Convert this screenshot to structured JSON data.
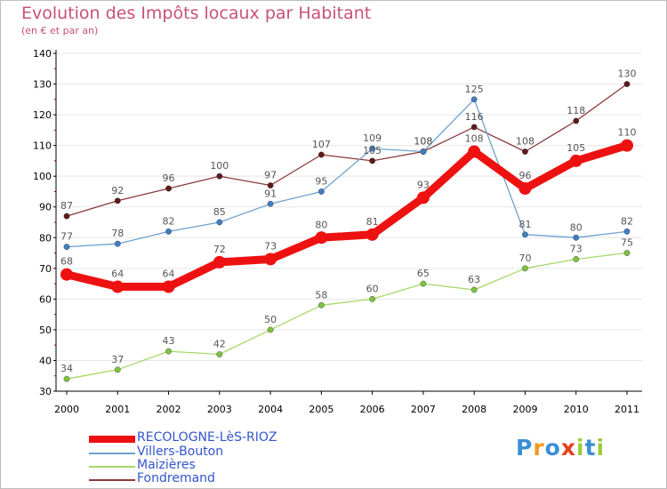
{
  "chart_data": {
    "type": "line",
    "title": "Evolution des Impôts locaux par Habitant",
    "subtitle": "(en € et par an)",
    "xlabel": "",
    "ylabel": "",
    "ylim": [
      30,
      140
    ],
    "yticks": [
      30,
      40,
      50,
      60,
      70,
      80,
      90,
      100,
      110,
      120,
      130,
      140
    ],
    "grid": "horizontal",
    "x": [
      "2000",
      "2001",
      "2002",
      "2003",
      "2004",
      "2005",
      "2006",
      "2007",
      "2008",
      "2009",
      "2010",
      "2011"
    ],
    "series": [
      {
        "name": "Fondremand",
        "color": "#8b3a3a",
        "point_color": "#5e1a1a",
        "values": [
          87,
          92,
          96,
          100,
          97,
          107,
          105,
          108,
          116,
          108,
          118,
          130
        ],
        "labels": [
          "87",
          "92",
          "96",
          "100",
          "97",
          "107",
          "105",
          "108",
          "116",
          "108",
          "118",
          "130"
        ]
      },
      {
        "name": "Villers-Bouton",
        "color": "#6fa1cf",
        "point_color": "#3f7fbf",
        "values": [
          77,
          78,
          82,
          85,
          91,
          95,
          109,
          108,
          125,
          81,
          80,
          82
        ],
        "labels": [
          "77",
          "78",
          "82",
          "85",
          "91",
          "95",
          "109",
          "108",
          "125",
          "81",
          "80",
          "82"
        ]
      },
      {
        "name": "Maizières",
        "color": "#a6d96a",
        "point_color": "#7fc241",
        "values": [
          34,
          37,
          43,
          42,
          50,
          58,
          60,
          65,
          63,
          70,
          73,
          75
        ],
        "labels": [
          "34",
          "37",
          "43",
          "42",
          "50",
          "58",
          "60",
          "65",
          "63",
          "70",
          "73",
          "75"
        ]
      },
      {
        "name": "RECOLOGNE-LèS-RIOZ",
        "color": "#ee1111",
        "point_color": "#ee1111",
        "values": [
          68,
          64,
          64,
          72,
          73,
          80,
          81,
          93,
          108,
          96,
          105,
          110
        ],
        "labels": [
          "68",
          "64",
          "64",
          "72",
          "73",
          "80",
          "81",
          "93",
          "108",
          "96",
          "105",
          "110"
        ]
      }
    ],
    "legend": [
      {
        "name": "RECOLOGNE-LèS-RIOZ",
        "color": "#ee1111"
      },
      {
        "name": "Villers-Bouton",
        "color": "#6fa1cf"
      },
      {
        "name": "Maizières",
        "color": "#a6d96a"
      },
      {
        "name": "Fondremand",
        "color": "#8b3a3a"
      }
    ],
    "legend_position": "bottom-left"
  },
  "colors": {
    "title": "#c8507a",
    "legend_text": "#3355cc",
    "axis": "#000000",
    "grid": "#e6e6e6",
    "value_label": "#555555"
  },
  "logo": {
    "letters": [
      "P",
      "r",
      "o",
      "x",
      "i",
      "t",
      "i"
    ],
    "colors": [
      "#3c8fd6",
      "#f29a1f",
      "#3c8fd6",
      "#e8411c",
      "#9ccc3c",
      "#3c8fd6",
      "#9ccc3c"
    ]
  }
}
